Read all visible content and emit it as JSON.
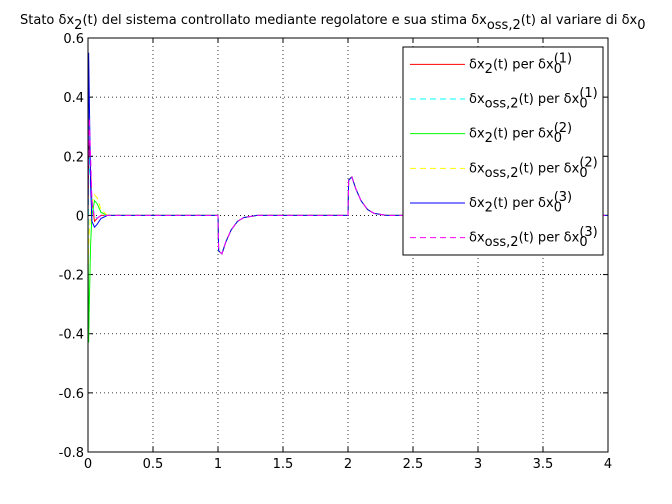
{
  "chart_data": {
    "type": "line",
    "title": [
      {
        "text": "Stato δx"
      },
      {
        "text": "2",
        "shift": "sub"
      },
      {
        "text": "(t) del sistema controllato mediante regolatore e sua stima δx"
      },
      {
        "text": "oss,2",
        "shift": "sub"
      },
      {
        "text": "(t) al variare di δx"
      },
      {
        "text": "0",
        "shift": "sub"
      }
    ],
    "x": [
      0,
      0.005,
      0.01,
      0.02,
      0.03,
      0.05,
      0.07,
      0.1,
      0.15,
      0.2,
      1.0,
      1.005,
      1.03,
      1.06,
      1.1,
      1.15,
      1.2,
      1.3,
      2.0,
      2.005,
      2.03,
      2.06,
      2.1,
      2.15,
      2.2,
      2.3,
      4
    ],
    "xlim": [
      0,
      4
    ],
    "xticks": [
      0,
      0.5,
      1,
      1.5,
      2,
      2.5,
      3,
      3.5,
      4
    ],
    "ylim": [
      -0.8,
      0.6
    ],
    "yticks": [
      -0.8,
      -0.6,
      -0.4,
      -0.2,
      0,
      0.2,
      0.4,
      0.6
    ],
    "grid": true,
    "legend": "upper right",
    "series": [
      {
        "name": [
          {
            "text": "δx"
          },
          {
            "text": "2",
            "shift": "sub"
          },
          {
            "text": "(t) per δx"
          },
          {
            "text": "0",
            "shift": "sub"
          },
          {
            "text": "(1)",
            "shift": "super",
            "stack": true
          }
        ],
        "color": "#ff0000",
        "dash": false,
        "values": [
          0,
          0.2,
          0.25,
          0.15,
          0.05,
          -0.02,
          -0.01,
          0,
          0,
          0,
          0,
          -0.12,
          -0.13,
          -0.09,
          -0.05,
          -0.02,
          -0.007,
          0,
          0,
          0.12,
          0.13,
          0.09,
          0.05,
          0.02,
          0.007,
          0,
          0
        ]
      },
      {
        "name": [
          {
            "text": "δx"
          },
          {
            "text": "oss,2",
            "shift": "sub"
          },
          {
            "text": "(t) per δx"
          },
          {
            "text": "0",
            "shift": "sub"
          },
          {
            "text": "(1)",
            "shift": "super",
            "stack": true
          }
        ],
        "color": "#00ffff",
        "dash": true,
        "values": [
          -0.1,
          0.1,
          0.2,
          0.12,
          0.05,
          0,
          -0.01,
          0,
          0,
          0,
          0,
          -0.12,
          -0.13,
          -0.09,
          -0.05,
          -0.02,
          -0.007,
          0,
          0,
          0.12,
          0.13,
          0.09,
          0.05,
          0.02,
          0.007,
          0,
          0
        ]
      },
      {
        "name": [
          {
            "text": "δx"
          },
          {
            "text": "2",
            "shift": "sub"
          },
          {
            "text": "(t) per δx"
          },
          {
            "text": "0",
            "shift": "sub"
          },
          {
            "text": "(2)",
            "shift": "super",
            "stack": true
          }
        ],
        "color": "#00ff00",
        "dash": false,
        "values": [
          0,
          -0.43,
          -0.3,
          -0.1,
          0,
          0.05,
          0.04,
          0.01,
          0,
          0,
          0,
          -0.12,
          -0.13,
          -0.09,
          -0.05,
          -0.02,
          -0.007,
          0,
          0,
          0.12,
          0.13,
          0.09,
          0.05,
          0.02,
          0.007,
          0,
          0
        ]
      },
      {
        "name": [
          {
            "text": "δx"
          },
          {
            "text": "oss,2",
            "shift": "sub"
          },
          {
            "text": "(t) per δx"
          },
          {
            "text": "0",
            "shift": "sub"
          },
          {
            "text": "(2)",
            "shift": "super",
            "stack": true
          }
        ],
        "color": "#ffff00",
        "dash": true,
        "values": [
          -0.2,
          -0.1,
          -0.05,
          0,
          0.04,
          0.07,
          0.06,
          0.02,
          0,
          0,
          0,
          -0.12,
          -0.13,
          -0.09,
          -0.05,
          -0.02,
          -0.007,
          0,
          0,
          0.12,
          0.13,
          0.09,
          0.05,
          0.02,
          0.007,
          0,
          0
        ]
      },
      {
        "name": [
          {
            "text": "δx"
          },
          {
            "text": "2",
            "shift": "sub"
          },
          {
            "text": "(t) per δx"
          },
          {
            "text": "0",
            "shift": "sub"
          },
          {
            "text": "(3)",
            "shift": "super",
            "stack": true
          }
        ],
        "color": "#0000ff",
        "dash": false,
        "values": [
          0,
          0.55,
          0.4,
          0.1,
          -0.02,
          -0.04,
          -0.03,
          -0.01,
          0,
          0,
          0,
          -0.12,
          -0.13,
          -0.09,
          -0.05,
          -0.02,
          -0.007,
          0,
          0,
          0.12,
          0.13,
          0.09,
          0.05,
          0.02,
          0.007,
          0,
          0
        ]
      },
      {
        "name": [
          {
            "text": "δx"
          },
          {
            "text": "oss,2",
            "shift": "sub"
          },
          {
            "text": "(t) per δx"
          },
          {
            "text": "0",
            "shift": "sub"
          },
          {
            "text": "(3)",
            "shift": "super",
            "stack": true
          }
        ],
        "color": "#ff00ff",
        "dash": true,
        "values": [
          0,
          0.2,
          0.33,
          0.2,
          0.05,
          -0.01,
          -0.01,
          0,
          0,
          0,
          0,
          -0.12,
          -0.13,
          -0.09,
          -0.05,
          -0.02,
          -0.007,
          0,
          0,
          0.12,
          0.13,
          0.09,
          0.05,
          0.02,
          0.007,
          0,
          0
        ]
      }
    ]
  }
}
